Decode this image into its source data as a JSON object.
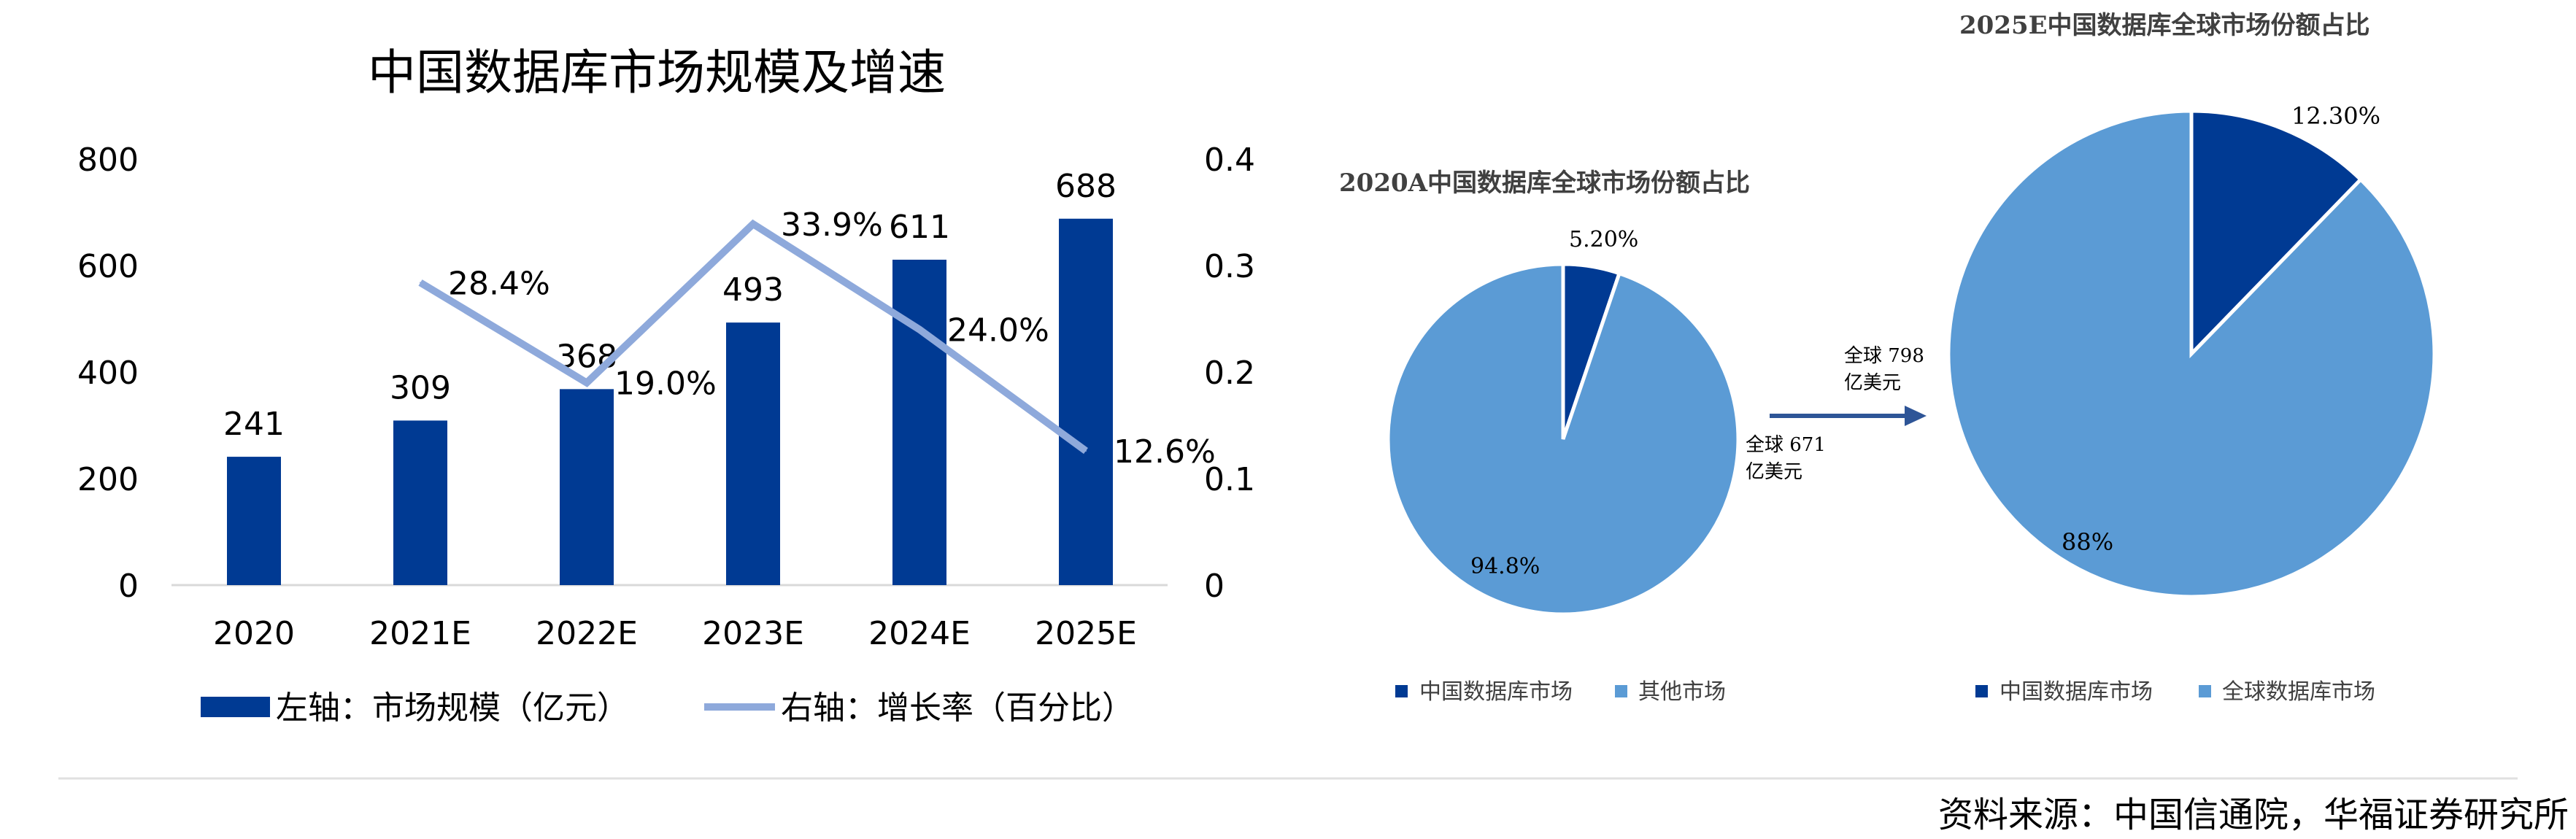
{
  "colors": {
    "china": "#003A93",
    "growth_line": "#8EA9DB",
    "other": "#5B9BD5",
    "baseline": "#D9D9D9",
    "arrow": "#2E5597"
  },
  "source_text": "资料来源：中国信通院，华福证券研究所",
  "chart_data": [
    {
      "type": "bar",
      "title": "中国数据库市场规模及增速",
      "categories": [
        "2020",
        "2021E",
        "2022E",
        "2023E",
        "2024E",
        "2025E"
      ],
      "series": [
        {
          "name": "左轴：市场规模（亿元）",
          "axis": "left",
          "type": "bar",
          "values": [
            241,
            309,
            368,
            493,
            611,
            688
          ],
          "labels": [
            "241",
            "309",
            "368",
            "493",
            "611",
            "688"
          ]
        },
        {
          "name": "右轴：增长率（百分比）",
          "axis": "right",
          "type": "line",
          "values": [
            null,
            0.284,
            0.19,
            0.339,
            0.24,
            0.126
          ],
          "labels": [
            "",
            "28.4%",
            "19.0%",
            "33.9%",
            "24.0%",
            "12.6%"
          ]
        }
      ],
      "yleft": {
        "range": [
          0,
          800
        ],
        "ticks": [
          "0",
          "200",
          "400",
          "600",
          "800"
        ]
      },
      "yright": {
        "range": [
          0,
          0.4
        ],
        "ticks": [
          "0",
          "0.1",
          "0.2",
          "0.3",
          "0.4"
        ]
      },
      "legend_position": "bottom"
    },
    {
      "type": "pie",
      "title": "2020A中国数据库全球市场份额占比",
      "slices": [
        {
          "name": "中国数据库市场",
          "value": 5.2,
          "label": "5.20%"
        },
        {
          "name": "其他市场",
          "value": 94.8,
          "label": "94.8%"
        }
      ],
      "legend_position": "bottom"
    },
    {
      "type": "pie",
      "title": "2025E中国数据库全球市场份额占比",
      "slices": [
        {
          "name": "中国数据库市场",
          "value": 12.3,
          "label": "12.30%"
        },
        {
          "name": "全球数据库市场",
          "value": 88,
          "label": "88%"
        }
      ],
      "legend_position": "bottom"
    }
  ],
  "annotations": {
    "from_total": [
      "全球 671",
      "亿美元"
    ],
    "to_total": [
      "全球 798",
      "亿美元"
    ]
  }
}
